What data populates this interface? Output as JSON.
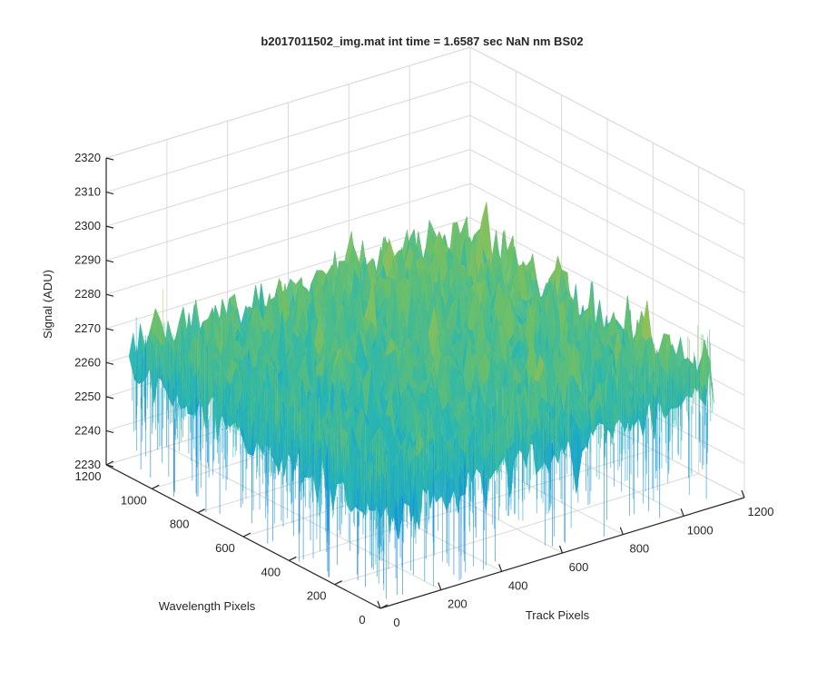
{
  "chart_data": {
    "type": "surface",
    "title": "b2017011502_img.mat int time = 1.6587 sec  NaN nm BS02",
    "xlabel": "Track Pixels",
    "ylabel": "Wavelength Pixels",
    "zlabel": "Signal (ADU)",
    "xlim": [
      0,
      1200
    ],
    "ylim": [
      0,
      1200
    ],
    "zlim": [
      2230,
      2320
    ],
    "x_ticks": [
      "0",
      "200",
      "400",
      "600",
      "800",
      "1000",
      "1200"
    ],
    "y_ticks": [
      "0",
      "200",
      "400",
      "600",
      "800",
      "1000",
      "1200"
    ],
    "z_ticks": [
      "2230",
      "2240",
      "2250",
      "2260",
      "2270",
      "2280",
      "2290",
      "2300",
      "2310",
      "2320"
    ],
    "surface_extent": {
      "x": [
        0,
        1100
      ],
      "y": [
        0,
        1100
      ]
    },
    "surface_signal_summary": {
      "mean": 2265,
      "typical_min": 2245,
      "typical_max": 2290,
      "spike_max": 2305,
      "spike_min": 2232
    },
    "colormap": [
      "#0b78e0",
      "#1aa0d8",
      "#2ab7b0",
      "#6cc06a",
      "#b3c04a",
      "#e8c83a"
    ],
    "grid": true
  }
}
